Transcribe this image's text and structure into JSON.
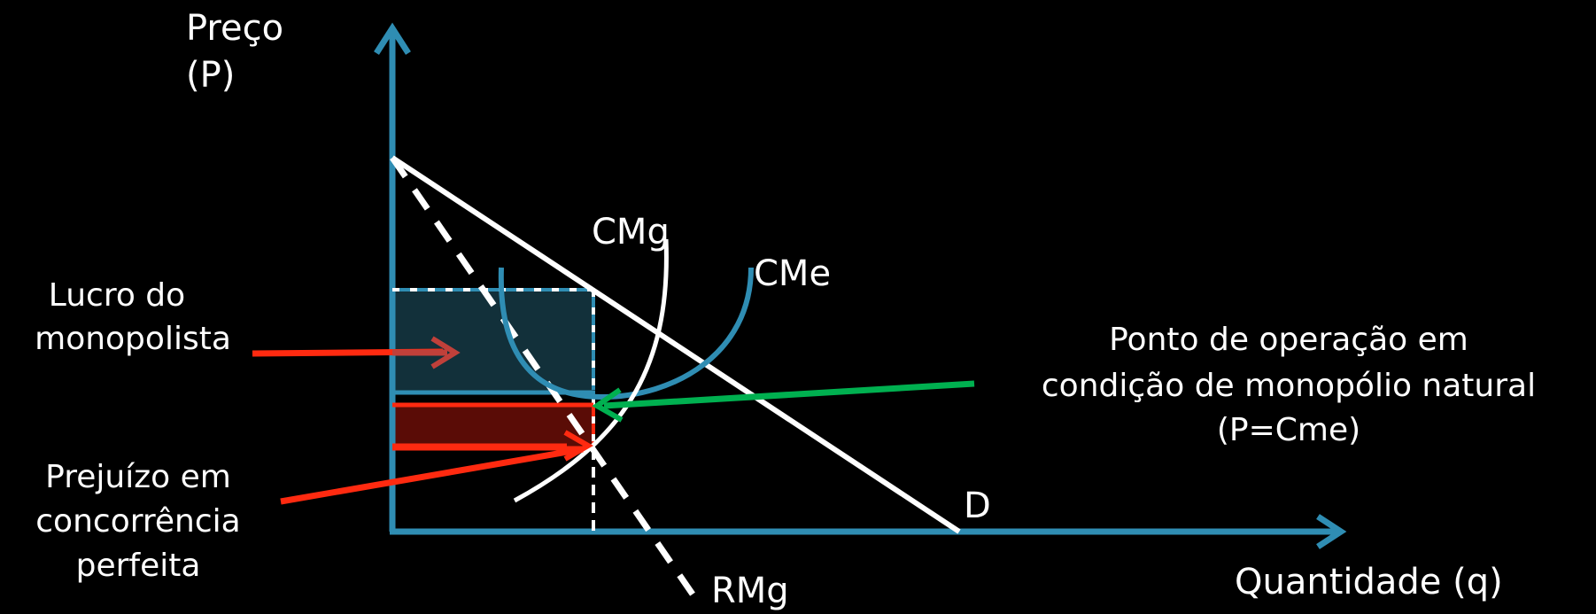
{
  "axes": {
    "y_label_line1": "Preço",
    "y_label_line2": "(P)",
    "x_label": "Quantidade (q)"
  },
  "curves": {
    "cmg": "CMg",
    "cme": "CMe",
    "demand": "D",
    "rmg": "RMg"
  },
  "annotations": {
    "profit_line1": "Lucro do",
    "profit_line2": "monopolista",
    "loss_line1": "Prejuízo em",
    "loss_line2": "concorrência",
    "loss_line3": "perfeita",
    "operation_line1": "Ponto de operação em",
    "operation_line2": "condição de monopólio natural",
    "operation_line3": "(P=Cme)"
  },
  "colors": {
    "axis": "#2f8db3",
    "curve": "#ffffff",
    "cme_curve": "#2f8db3",
    "profit_fill": "#12303a",
    "loss_fill": "#5a0c06",
    "loss_line": "#ff2a10",
    "arrow_red": "#ff2a10",
    "arrow_green": "#00b050",
    "profit_arrow": "#c0403a",
    "text": "#ffffff",
    "background": "#000000"
  }
}
